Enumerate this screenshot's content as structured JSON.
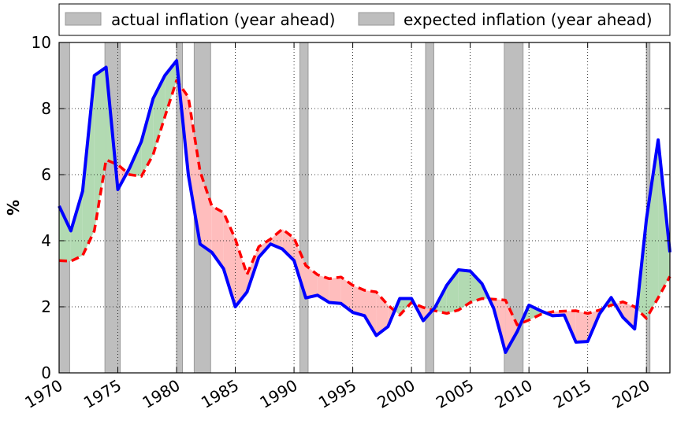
{
  "chart_data": {
    "type": "line",
    "title": "",
    "xlabel": "",
    "ylabel": "%",
    "xlim": [
      1970,
      2022
    ],
    "ylim": [
      0,
      10
    ],
    "x_ticks": [
      "1970",
      "1975",
      "1980",
      "1985",
      "1990",
      "1995",
      "2000",
      "2005",
      "2010",
      "2015",
      "2020"
    ],
    "y_ticks": [
      "0",
      "2",
      "4",
      "6",
      "8",
      "10"
    ],
    "grid": true,
    "legend_placement": "top",
    "years": [
      1970,
      1971,
      1972,
      1973,
      1974,
      1975,
      1976,
      1977,
      1978,
      1979,
      1980,
      1981,
      1982,
      1983,
      1984,
      1985,
      1986,
      1987,
      1988,
      1989,
      1990,
      1991,
      1992,
      1993,
      1994,
      1995,
      1996,
      1997,
      1998,
      1999,
      2000,
      2001,
      2002,
      2003,
      2004,
      2005,
      2006,
      2007,
      2008,
      2009,
      2010,
      2011,
      2012,
      2013,
      2014,
      2015,
      2016,
      2017,
      2018,
      2019,
      2020,
      2021,
      2022
    ],
    "series": [
      {
        "name": "actual inflation (year ahead)",
        "color": "#0000ff",
        "style": "solid",
        "values": [
          5.05,
          4.3,
          5.5,
          9.0,
          9.25,
          5.55,
          6.2,
          7.0,
          8.3,
          9.0,
          9.45,
          6.0,
          3.9,
          3.65,
          3.15,
          2.0,
          2.45,
          3.5,
          3.9,
          3.75,
          3.4,
          2.27,
          2.35,
          2.13,
          2.1,
          1.83,
          1.73,
          1.13,
          1.4,
          2.25,
          2.25,
          1.58,
          1.98,
          2.65,
          3.12,
          3.08,
          2.7,
          1.95,
          0.62,
          1.25,
          2.05,
          1.88,
          1.73,
          1.75,
          0.93,
          0.95,
          1.78,
          2.28,
          1.68,
          1.33,
          4.65,
          7.05,
          3.65
        ]
      },
      {
        "name": "expected inflation (year ahead)",
        "color": "#ff0000",
        "style": "dashed",
        "values": [
          3.4,
          3.38,
          3.55,
          4.3,
          6.45,
          6.3,
          6.0,
          5.95,
          6.6,
          7.75,
          8.85,
          8.35,
          6.1,
          5.05,
          4.85,
          4.05,
          2.98,
          3.82,
          4.05,
          4.35,
          4.08,
          3.25,
          2.97,
          2.85,
          2.9,
          2.65,
          2.5,
          2.45,
          2.05,
          1.75,
          2.13,
          1.98,
          1.88,
          1.8,
          1.9,
          2.13,
          2.25,
          2.23,
          2.2,
          1.45,
          1.6,
          1.77,
          1.85,
          1.87,
          1.88,
          1.8,
          1.9,
          2.05,
          2.15,
          2.0,
          1.65,
          2.27,
          2.92
        ]
      }
    ],
    "recessions": [
      [
        1970.0,
        1970.9
      ],
      [
        1973.9,
        1975.2
      ],
      [
        1980.0,
        1980.5
      ],
      [
        1981.5,
        1982.9
      ],
      [
        1990.5,
        1991.2
      ],
      [
        2001.2,
        2001.9
      ],
      [
        2007.9,
        2009.5
      ],
      [
        2020.0,
        2020.3
      ]
    ],
    "fill_colors": {
      "actual_above": "#b2dab2",
      "expected_above": "#ffbdbd"
    },
    "recession_color": "#bebebe",
    "legend": [
      {
        "label": "actual inflation (year ahead)",
        "swatch": "#bebebe"
      },
      {
        "label": "expected inflation (year ahead)",
        "swatch": "#bebebe"
      }
    ]
  }
}
